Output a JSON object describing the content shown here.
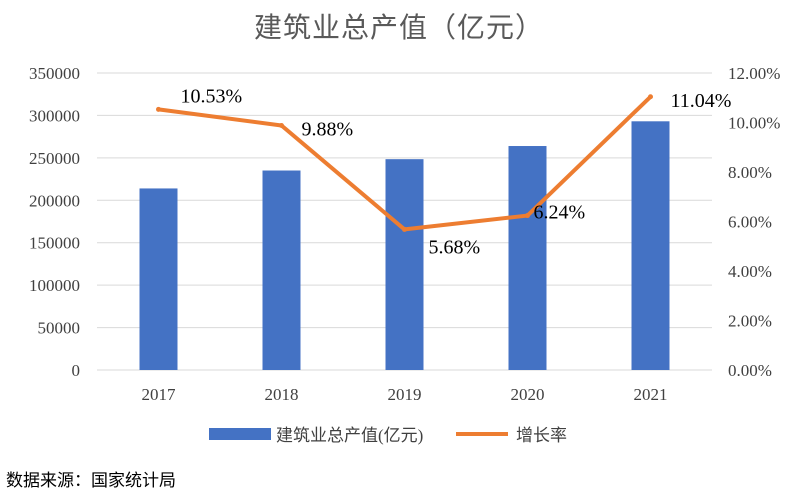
{
  "chart_data": {
    "type": "bar",
    "title": "建筑业总产值（亿元）",
    "categories": [
      "2017",
      "2018",
      "2019",
      "2020",
      "2021"
    ],
    "series": [
      {
        "name": "建筑业总产值(亿元)",
        "type": "bar",
        "axis": "left",
        "color": "#4472C4",
        "values": [
          213954,
          235086,
          248446,
          263947,
          293079
        ]
      },
      {
        "name": "增长率",
        "type": "line",
        "axis": "right",
        "color": "#ED7D31",
        "values": [
          10.53,
          9.88,
          5.68,
          6.24,
          11.04
        ],
        "labels": [
          "10.53%",
          "9.88%",
          "5.68%",
          "6.24%",
          "11.04%"
        ]
      }
    ],
    "y_left": {
      "min": 0,
      "max": 350000,
      "ticks": [
        "0",
        "50000",
        "100000",
        "150000",
        "200000",
        "250000",
        "300000",
        "350000"
      ]
    },
    "y_right": {
      "min": 0,
      "max": 12,
      "ticks": [
        "0.00%",
        "2.00%",
        "4.00%",
        "6.00%",
        "8.00%",
        "10.00%",
        "12.00%"
      ]
    },
    "grid": true,
    "legend": "bottom"
  },
  "source": "数据来源：国家统计局"
}
